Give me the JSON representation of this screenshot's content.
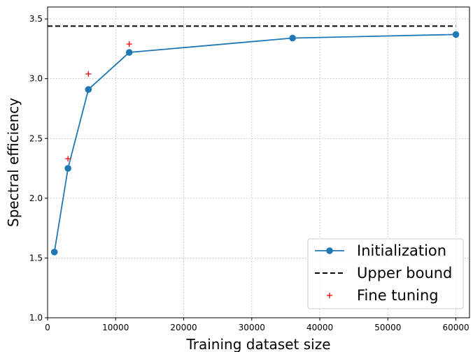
{
  "chart_data": {
    "type": "line",
    "title": "",
    "xlabel": "Training dataset size",
    "ylabel": "Spectral efficiency",
    "xlim": [
      0,
      62000
    ],
    "ylim": [
      1.0,
      3.6
    ],
    "xticks": [
      0,
      10000,
      20000,
      30000,
      40000,
      50000,
      60000
    ],
    "yticks": [
      1.0,
      1.5,
      2.0,
      2.5,
      3.0,
      3.5
    ],
    "xtick_labels": [
      "0",
      "10000",
      "20000",
      "30000",
      "40000",
      "50000",
      "60000"
    ],
    "ytick_labels": [
      "1.0",
      "1.5",
      "2.0",
      "2.5",
      "3.0",
      "3.5"
    ],
    "grid": true,
    "legend_position": "bottom-right",
    "series": [
      {
        "name": "Initialization",
        "style": "line-marker",
        "color": "#1f77b4",
        "x": [
          1000,
          3000,
          6000,
          12000,
          36000,
          60000
        ],
        "y": [
          1.55,
          2.25,
          2.91,
          3.22,
          3.34,
          3.37
        ]
      },
      {
        "name": "Upper bound",
        "style": "dashed",
        "color": "#000000",
        "x": [
          0,
          60000
        ],
        "y": [
          3.44,
          3.44
        ]
      },
      {
        "name": "Fine tuning",
        "style": "plus-marker",
        "color": "#ff0000",
        "x": [
          3000,
          6000,
          12000
        ],
        "y": [
          2.33,
          3.04,
          3.29
        ]
      }
    ]
  }
}
